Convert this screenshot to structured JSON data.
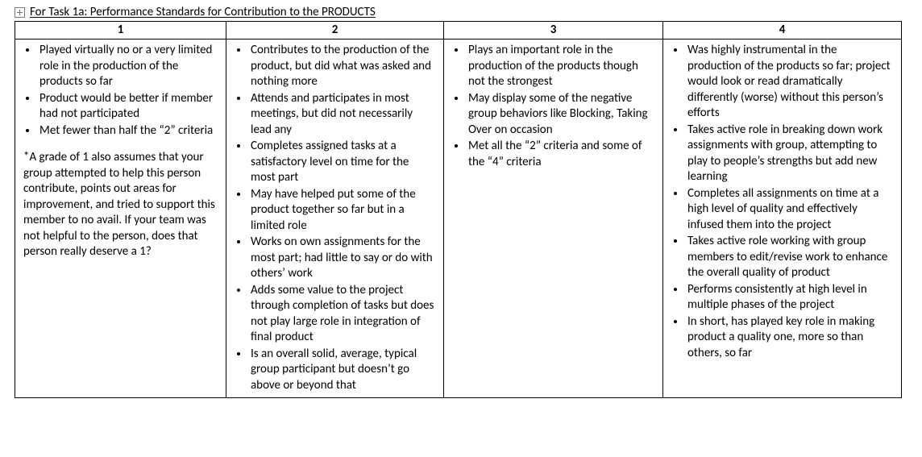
{
  "title": "For Task 1a: Performance Standards for Contribution to the PRODUCTS",
  "headers": [
    "1",
    "2",
    "3",
    "4"
  ],
  "col1": {
    "bullets": [
      "Played virtually no or a very limited role in the production of the products so far",
      "Product would be better if member had not participated",
      "Met fewer than half the “2” criteria"
    ],
    "note": "*A grade of 1 also assumes that your group attempted to help this person contribute, points out areas for improvement, and tried to support this member to no avail. If your team was not helpful to the person, does that person really deserve a 1?"
  },
  "col2": {
    "bullets": [
      "Contributes to the production of the product, but did what was asked and nothing more",
      "Attends and participates in most meetings, but did not necessarily lead any",
      "Completes assigned tasks at a satisfactory level on time for the most part",
      "May have helped put some of the product together so far but in a limited role",
      "Works on own assignments for the most part; had little to say or do with others’ work",
      "Adds some value to the project through completion of tasks but does not play large role in integration of final product",
      "Is an overall solid, average, typical group participant but doesn’t go above or beyond that"
    ]
  },
  "col3": {
    "bullets": [
      "Plays an important role in the production of the products though not the strongest",
      "May display some of the negative group behaviors like Blocking, Taking Over on occasion",
      "Met all the “2” criteria and some of the “4” criteria"
    ]
  },
  "col4": {
    "bullets": [
      "Was highly instrumental in the production of the products so far; project would look or read dramatically differently (worse) without this person’s efforts",
      "Takes active role in breaking down work assignments with group, attempting to play to people’s strengths but add new learning",
      "Completes all assignments on time at a high level of quality and effectively infused them into the project",
      "Takes active role working with group members to edit/revise work to enhance the overall quality of product",
      "Performs consistently at high level in multiple phases of the project",
      "In short, has played key role in making product a quality one, more so than others, so far"
    ]
  }
}
